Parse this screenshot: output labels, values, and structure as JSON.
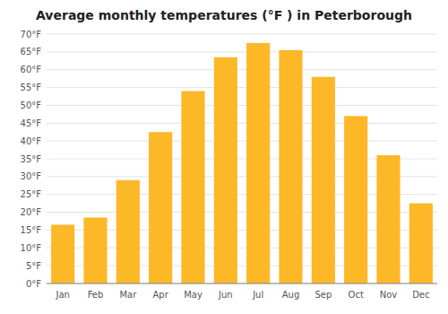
{
  "chart_data": {
    "type": "bar",
    "title": "Average monthly temperatures (°F ) in Peterborough",
    "categories": [
      "Jan",
      "Feb",
      "Mar",
      "Apr",
      "May",
      "Jun",
      "Jul",
      "Aug",
      "Sep",
      "Oct",
      "Nov",
      "Dec"
    ],
    "values": [
      16.5,
      18.5,
      29.0,
      42.5,
      54.0,
      63.5,
      67.5,
      65.5,
      58.0,
      47.0,
      36.0,
      22.5
    ],
    "color": "#FDB827",
    "ylim": [
      0,
      70
    ],
    "yticks": [
      {
        "value": 0,
        "label": "0°F"
      },
      {
        "value": 5,
        "label": "5°F"
      },
      {
        "value": 10,
        "label": "10°F"
      },
      {
        "value": 15,
        "label": "15°F"
      },
      {
        "value": 20,
        "label": "20°F"
      },
      {
        "value": 25,
        "label": "25°F"
      },
      {
        "value": 30,
        "label": "30°F"
      },
      {
        "value": 35,
        "label": "35°F"
      },
      {
        "value": 40,
        "label": "40°F"
      },
      {
        "value": 45,
        "label": "45°F"
      },
      {
        "value": 50,
        "label": "50°F"
      },
      {
        "value": 55,
        "label": "55°F"
      },
      {
        "value": 60,
        "label": "60°F"
      },
      {
        "value": 65,
        "label": "65°F"
      },
      {
        "value": 70,
        "label": "70°F"
      }
    ],
    "grid": true
  }
}
